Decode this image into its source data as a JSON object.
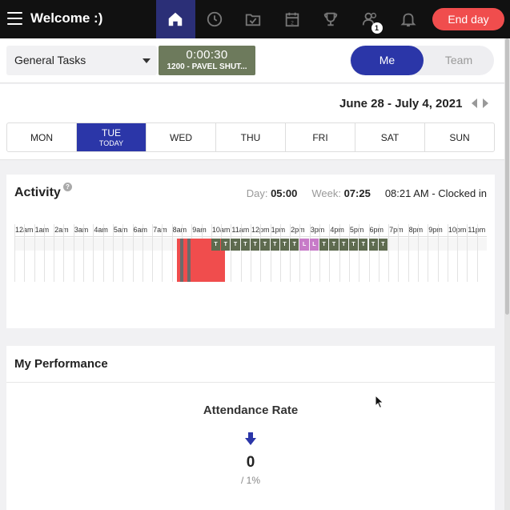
{
  "header": {
    "title": "Welcome :)",
    "end_day_label": "End day",
    "nav_icons": [
      "home-icon",
      "clock-icon",
      "task-check-icon",
      "calendar-icon",
      "trophy-icon",
      "users-icon",
      "bell-icon"
    ],
    "users_badge": "1",
    "active_color": "#2b2f77"
  },
  "controls": {
    "task_select": "General Tasks",
    "timer": "0:00:30",
    "timer_task": "1200 - PAVEL SHUT...",
    "toggle_me": "Me",
    "toggle_team": "Team"
  },
  "dates": {
    "range": "June 28 - July 4, 2021",
    "days": [
      {
        "label": "MON",
        "sub": ""
      },
      {
        "label": "TUE",
        "sub": "TODAY"
      },
      {
        "label": "WED",
        "sub": ""
      },
      {
        "label": "THU",
        "sub": ""
      },
      {
        "label": "FRI",
        "sub": ""
      },
      {
        "label": "SAT",
        "sub": ""
      },
      {
        "label": "SUN",
        "sub": ""
      }
    ]
  },
  "activity": {
    "title": "Activity",
    "help": "?",
    "day_label": "Day:",
    "day_value": "05:00",
    "week_label": "Week:",
    "week_value": "07:25",
    "clocked": "08:21 AM - Clocked in",
    "hours": [
      "12am",
      "1am",
      "2am",
      "3am",
      "4am",
      "5am",
      "6am",
      "7am",
      "8am",
      "9am",
      "10am",
      "11am",
      "12pm",
      "1pm",
      "2pm",
      "3pm",
      "4pm",
      "5pm",
      "6pm",
      "7pm",
      "8pm",
      "9pm",
      "10pm",
      "11pm"
    ],
    "marks": [
      {
        "label": "T",
        "type": "T"
      },
      {
        "label": "T",
        "type": "T"
      },
      {
        "label": "T",
        "type": "T"
      },
      {
        "label": "T",
        "type": "T"
      },
      {
        "label": "T",
        "type": "T"
      },
      {
        "label": "T",
        "type": "T"
      },
      {
        "label": "T",
        "type": "T"
      },
      {
        "label": "T",
        "type": "T"
      },
      {
        "label": "T",
        "type": "T"
      },
      {
        "label": "L",
        "type": "L"
      },
      {
        "label": "L",
        "type": "L"
      },
      {
        "label": "T",
        "type": "T"
      },
      {
        "label": "T",
        "type": "T"
      },
      {
        "label": "T",
        "type": "T"
      },
      {
        "label": "T",
        "type": "T"
      },
      {
        "label": "T",
        "type": "T"
      },
      {
        "label": "T",
        "type": "T"
      },
      {
        "label": "T",
        "type": "T"
      }
    ],
    "colors": {
      "T": "#5e6b4f",
      "L": "#c77bc8",
      "shift": "#f04d4d"
    }
  },
  "performance": {
    "title": "My Performance",
    "attendance_title": "Attendance Rate",
    "attendance_value": "0",
    "attendance_sub": "/ 1%",
    "trend_icon": "arrow-down-icon",
    "trend_color": "#2b36a8"
  }
}
